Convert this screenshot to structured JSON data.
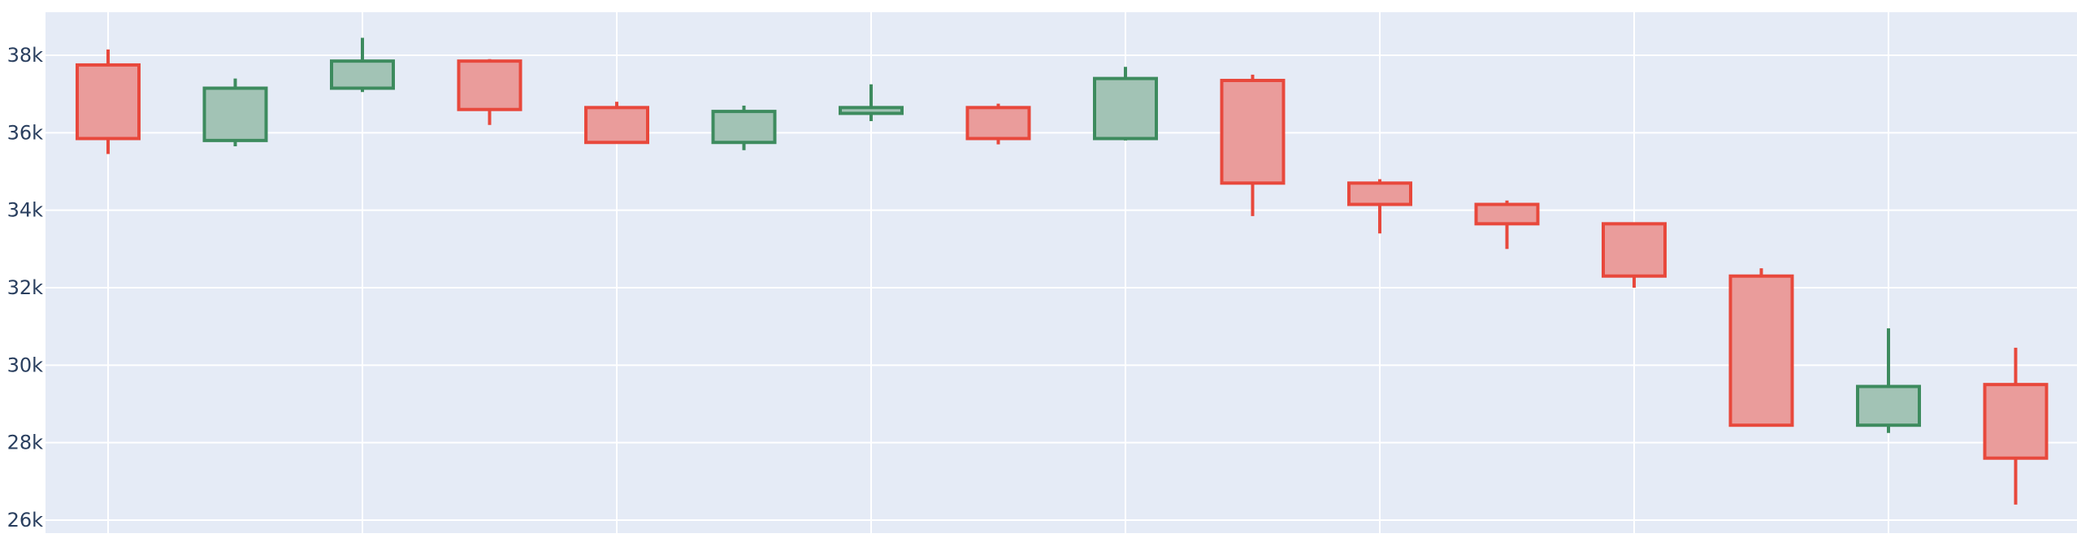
{
  "chart_data": {
    "type": "candlestick",
    "title": "",
    "xlabel": "",
    "ylabel": "",
    "ylim": [
      25700,
      39200
    ],
    "grid": true,
    "colors": {
      "increasing": "#3d8b5e",
      "increasing_fill": "#a2c3b5",
      "decreasing": "#e8483c",
      "decreasing_fill": "#ea9c9b",
      "plot_background": "#e5ebf6",
      "grid": "#ffffff",
      "text": "#2a3f5f"
    },
    "y_ticks": [
      {
        "value": 38000,
        "label": "38k"
      },
      {
        "value": 36000,
        "label": "36k"
      },
      {
        "value": 34000,
        "label": "34k"
      },
      {
        "value": 32000,
        "label": "32k"
      },
      {
        "value": 30000,
        "label": "30k"
      },
      {
        "value": 28000,
        "label": "28k"
      },
      {
        "value": 26000,
        "label": "26k"
      }
    ],
    "candles": [
      {
        "open": 37750,
        "high": 38150,
        "low": 35450,
        "close": 35850
      },
      {
        "open": 35800,
        "high": 37400,
        "low": 35650,
        "close": 37150
      },
      {
        "open": 37150,
        "high": 38450,
        "low": 37050,
        "close": 37850
      },
      {
        "open": 37850,
        "high": 37900,
        "low": 36200,
        "close": 36600
      },
      {
        "open": 36650,
        "high": 36800,
        "low": 35750,
        "close": 35750
      },
      {
        "open": 35750,
        "high": 36700,
        "low": 35550,
        "close": 36550
      },
      {
        "open": 36500,
        "high": 37250,
        "low": 36300,
        "close": 36650
      },
      {
        "open": 36650,
        "high": 36750,
        "low": 35700,
        "close": 35850
      },
      {
        "open": 35850,
        "high": 37700,
        "low": 35800,
        "close": 37400
      },
      {
        "open": 37350,
        "high": 37500,
        "low": 33850,
        "close": 34700
      },
      {
        "open": 34700,
        "high": 34800,
        "low": 33400,
        "close": 34150
      },
      {
        "open": 34150,
        "high": 34250,
        "low": 33000,
        "close": 33650
      },
      {
        "open": 33650,
        "high": 33650,
        "low": 32000,
        "close": 32300
      },
      {
        "open": 32300,
        "high": 32500,
        "low": 28450,
        "close": 28450
      },
      {
        "open": 28450,
        "high": 30950,
        "low": 28250,
        "close": 29450
      },
      {
        "open": 29500,
        "high": 30450,
        "low": 26400,
        "close": 27600
      }
    ]
  }
}
